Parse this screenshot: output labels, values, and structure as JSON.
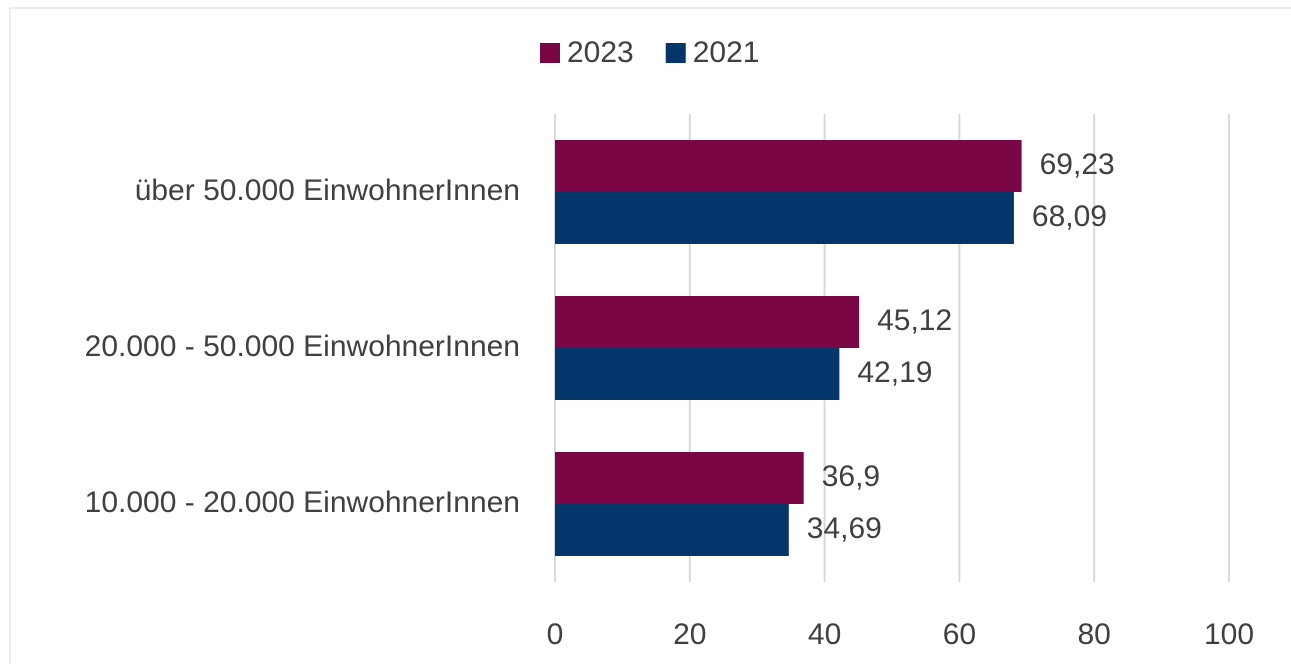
{
  "chart_data": {
    "type": "barh",
    "categories": [
      "über 50.000 EinwohnerInnen",
      "20.000 - 50.000 EinwohnerInnen",
      "10.000 - 20.000 EinwohnerInnen"
    ],
    "series": [
      {
        "name": "2023",
        "color": "#7b0646",
        "values": [
          69.23,
          45.12,
          36.9
        ],
        "value_labels": [
          "69,23",
          "45,12",
          "36,9"
        ]
      },
      {
        "name": "2021",
        "color": "#04356b",
        "values": [
          68.09,
          42.19,
          34.69
        ],
        "value_labels": [
          "68,09",
          "42,19",
          "34,69"
        ]
      }
    ],
    "xlim": [
      0,
      100
    ],
    "xticks": [
      0,
      20,
      40,
      60,
      80,
      100
    ],
    "grid": true,
    "legend": "top"
  }
}
